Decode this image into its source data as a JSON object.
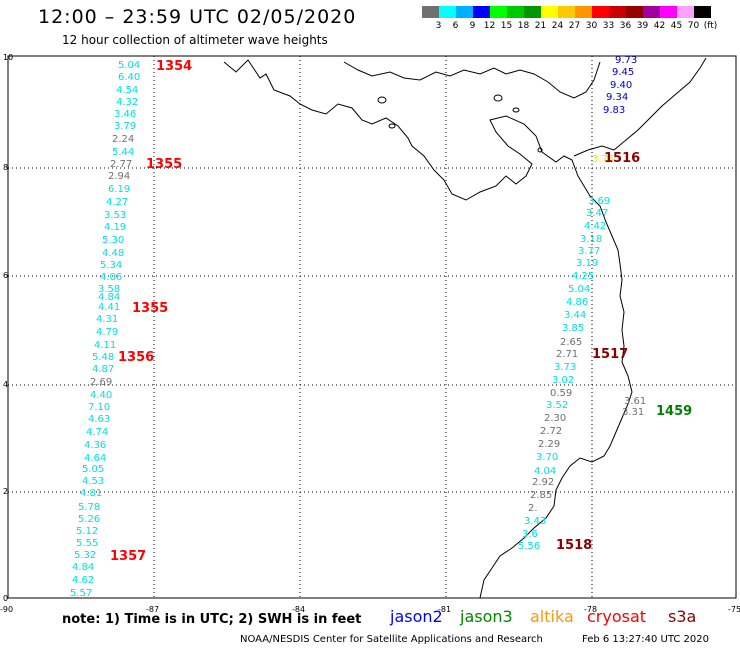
{
  "header": {
    "title": "12:00 – 23:59 UTC 02/05/2020",
    "subtitle": "12 hour collection of altimeter wave heights"
  },
  "colorbar": {
    "colors": [
      "#707070",
      "#00ffff",
      "#00b0ff",
      "#0000ff",
      "#00ff00",
      "#00c800",
      "#009600",
      "#ffff00",
      "#ffc800",
      "#ff9600",
      "#ff0000",
      "#c80000",
      "#960000",
      "#a000a0",
      "#ff00ff",
      "#ffa0ff",
      "#000000"
    ],
    "labels": [
      "",
      "3",
      "6",
      "9",
      "12",
      "15",
      "18",
      "21",
      "24",
      "27",
      "30",
      "33",
      "36",
      "39",
      "42",
      "45",
      "70",
      "(ft)"
    ]
  },
  "map": {
    "lon_ticks": [
      "-90",
      "-87",
      "-84",
      "-81",
      "-78",
      "-75"
    ],
    "lat_ticks": [
      "0",
      "2",
      "4",
      "6",
      "8",
      "10"
    ],
    "track_west": [
      {
        "t": "5.04",
        "c": "#00e0e0"
      },
      {
        "t": "6.40",
        "c": "#00e0e0"
      },
      {
        "t": "4.54",
        "c": "#00e0e0"
      },
      {
        "t": "4.32",
        "c": "#00e0e0"
      },
      {
        "t": "3.46",
        "c": "#00e0e0"
      },
      {
        "t": "3.79",
        "c": "#00e0e0"
      },
      {
        "t": "2.24",
        "c": "#707070"
      },
      {
        "t": "5.44",
        "c": "#00e0e0"
      },
      {
        "t": "2.77",
        "c": "#707070"
      },
      {
        "t": "2.94",
        "c": "#707070"
      },
      {
        "t": "6.19",
        "c": "#00e0e0"
      },
      {
        "t": "4.27",
        "c": "#00e0e0"
      },
      {
        "t": "3.53",
        "c": "#00e0e0"
      },
      {
        "t": "4.19",
        "c": "#00e0e0"
      },
      {
        "t": "5.30",
        "c": "#00e0e0"
      },
      {
        "t": "4.48",
        "c": "#00e0e0"
      },
      {
        "t": "5.34",
        "c": "#00e0e0"
      },
      {
        "t": "4.06",
        "c": "#00e0e0"
      },
      {
        "t": "3.58",
        "c": "#00e0e0"
      },
      {
        "t": "4.84",
        "c": "#00e0e0"
      },
      {
        "t": "4.41",
        "c": "#00e0e0"
      },
      {
        "t": "4.31",
        "c": "#00e0e0"
      },
      {
        "t": "4.79",
        "c": "#00e0e0"
      },
      {
        "t": "4.11",
        "c": "#00e0e0"
      },
      {
        "t": "5.48",
        "c": "#00e0e0"
      },
      {
        "t": "4.87",
        "c": "#00e0e0"
      },
      {
        "t": "2.69",
        "c": "#707070"
      },
      {
        "t": "4.40",
        "c": "#00e0e0"
      },
      {
        "t": "7.10",
        "c": "#00e0e0"
      },
      {
        "t": "4.63",
        "c": "#00e0e0"
      },
      {
        "t": "4.74",
        "c": "#00e0e0"
      },
      {
        "t": "4.36",
        "c": "#00e0e0"
      },
      {
        "t": "4.64",
        "c": "#00e0e0"
      },
      {
        "t": "5.05",
        "c": "#00e0e0"
      },
      {
        "t": "4.53",
        "c": "#00e0e0"
      },
      {
        "t": "4.81",
        "c": "#00e0e0"
      },
      {
        "t": "5.78",
        "c": "#00e0e0"
      },
      {
        "t": "5.26",
        "c": "#00e0e0"
      },
      {
        "t": "5.12",
        "c": "#00e0e0"
      },
      {
        "t": "5.55",
        "c": "#00e0e0"
      },
      {
        "t": "5.32",
        "c": "#00e0e0"
      },
      {
        "t": "4.84",
        "c": "#00e0e0"
      },
      {
        "t": "4.62",
        "c": "#00e0e0"
      },
      {
        "t": "5.57",
        "c": "#00e0e0"
      }
    ],
    "track_east": [
      {
        "t": "3.69",
        "c": "#00e0e0"
      },
      {
        "t": "3.47",
        "c": "#00e0e0"
      },
      {
        "t": "4.42",
        "c": "#00e0e0"
      },
      {
        "t": "3.18",
        "c": "#00e0e0"
      },
      {
        "t": "3.77",
        "c": "#00e0e0"
      },
      {
        "t": "3.19",
        "c": "#00e0e0"
      },
      {
        "t": "4.25",
        "c": "#00e0e0"
      },
      {
        "t": "5.04",
        "c": "#00e0e0"
      },
      {
        "t": "4.86",
        "c": "#00e0e0"
      },
      {
        "t": "3.44",
        "c": "#00e0e0"
      },
      {
        "t": "3.85",
        "c": "#00e0e0"
      },
      {
        "t": "2.65",
        "c": "#707070"
      },
      {
        "t": "2.71",
        "c": "#707070"
      },
      {
        "t": "3.73",
        "c": "#00e0e0"
      },
      {
        "t": "3.02",
        "c": "#00e0e0"
      },
      {
        "t": "0.59",
        "c": "#707070"
      },
      {
        "t": "3.52",
        "c": "#00e0e0"
      },
      {
        "t": "2.30",
        "c": "#707070"
      },
      {
        "t": "2.72",
        "c": "#707070"
      },
      {
        "t": "2.29",
        "c": "#707070"
      },
      {
        "t": "3.70",
        "c": "#00e0e0"
      },
      {
        "t": "4.04",
        "c": "#00e0e0"
      },
      {
        "t": "2.92",
        "c": "#707070"
      },
      {
        "t": "2.85",
        "c": "#707070"
      },
      {
        "t": "2.",
        "c": "#707070"
      },
      {
        "t": "3.43",
        "c": "#00e0e0"
      },
      {
        "t": "3.6",
        "c": "#00e0e0"
      },
      {
        "t": "5.56",
        "c": "#00e0e0"
      }
    ],
    "track_ne": [
      {
        "t": "9.73",
        "c": "#0000cc"
      },
      {
        "t": "9.45",
        "c": "#0000cc"
      },
      {
        "t": "9.40",
        "c": "#0000cc"
      },
      {
        "t": "9.34",
        "c": "#0000cc"
      },
      {
        "t": "9.83",
        "c": "#0000cc"
      }
    ],
    "extra_values": [
      {
        "t": "3.76",
        "c": "#e8e800"
      },
      {
        "t": "3.61",
        "c": "#707070"
      },
      {
        "t": "3.31",
        "c": "#707070"
      }
    ],
    "time_labels": [
      {
        "t": "1354",
        "c": "#ff0000"
      },
      {
        "t": "1355",
        "c": "#ff0000"
      },
      {
        "t": "1355",
        "c": "#ff0000"
      },
      {
        "t": "1356",
        "c": "#ff0000"
      },
      {
        "t": "1357",
        "c": "#ff0000"
      },
      {
        "t": "1516",
        "c": "#8b0000"
      },
      {
        "t": "1517",
        "c": "#8b0000"
      },
      {
        "t": "1459",
        "c": "#008000"
      },
      {
        "t": "1518",
        "c": "#8b0000"
      }
    ]
  },
  "note": "note:  1) Time is in UTC;  2) SWH is in feet",
  "satellites": [
    {
      "name": "jason2",
      "color": "#0000ff"
    },
    {
      "name": "jason3",
      "color": "#008800"
    },
    {
      "name": "altika",
      "color": "#ff9900"
    },
    {
      "name": "cryosat",
      "color": "#ff0000"
    },
    {
      "name": "s3a",
      "color": "#8b0000"
    }
  ],
  "footer": {
    "credit": "NOAA/NESDIS Center for Satellite Applications and Research",
    "timestamp": "Feb  6 13:27:40 UTC 2020"
  }
}
